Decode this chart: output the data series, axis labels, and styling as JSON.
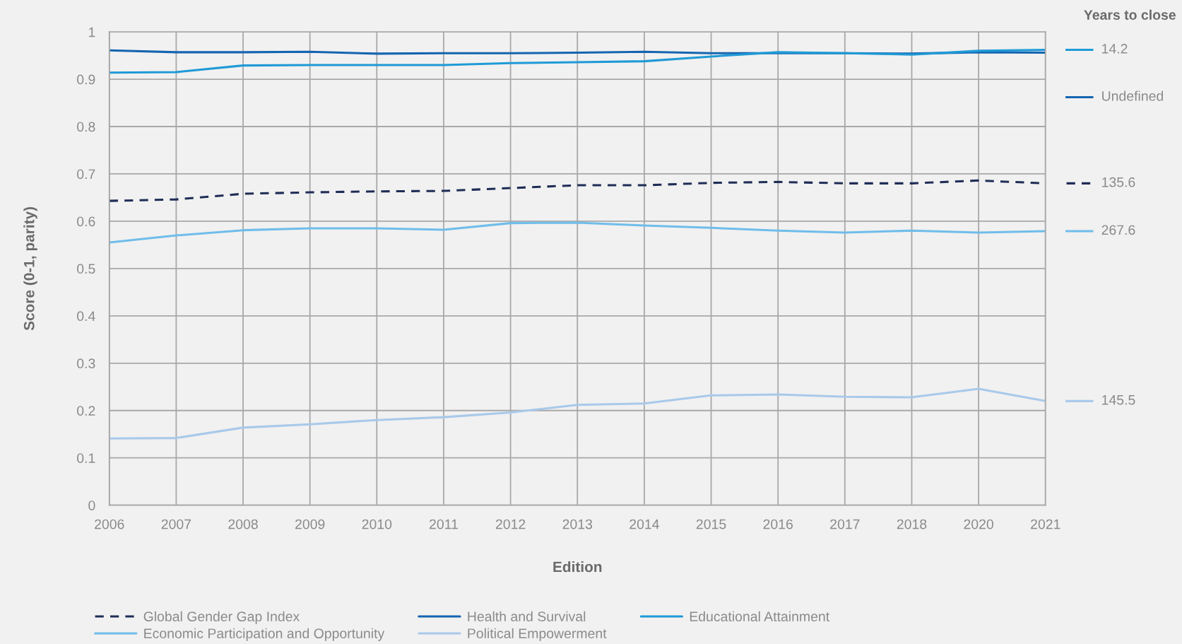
{
  "chart_data": {
    "type": "line",
    "xlabel": "Edition",
    "ylabel": "Score (0-1, parity)",
    "categories": [
      "2006",
      "2007",
      "2008",
      "2009",
      "2010",
      "2011",
      "2012",
      "2013",
      "2014",
      "2015",
      "2016",
      "2017",
      "2018",
      "2020",
      "2021"
    ],
    "series": [
      {
        "name": "Global Gender Gap Index",
        "color": "#1f2d56",
        "line_style": "dashed",
        "values": [
          0.643,
          0.646,
          0.658,
          0.661,
          0.663,
          0.664,
          0.67,
          0.676,
          0.676,
          0.681,
          0.683,
          0.68,
          0.68,
          0.686,
          0.68
        ]
      },
      {
        "name": "Health and Survival",
        "color": "#1565b0",
        "values": [
          0.961,
          0.957,
          0.957,
          0.958,
          0.954,
          0.955,
          0.955,
          0.956,
          0.958,
          0.955,
          0.955,
          0.955,
          0.954,
          0.957,
          0.956
        ]
      },
      {
        "name": "Educational Attainment",
        "color": "#1f9ad6",
        "values": [
          0.914,
          0.915,
          0.929,
          0.93,
          0.93,
          0.93,
          0.934,
          0.936,
          0.938,
          0.948,
          0.957,
          0.955,
          0.952,
          0.96,
          0.962
        ]
      },
      {
        "name": "Economic Participation and Opportunity",
        "color": "#6fbdea",
        "values": [
          0.555,
          0.57,
          0.581,
          0.585,
          0.585,
          0.582,
          0.596,
          0.597,
          0.591,
          0.586,
          0.58,
          0.576,
          0.58,
          0.576,
          0.579
        ]
      },
      {
        "name": "Political Empowerment",
        "color": "#a9c9ea",
        "values": [
          0.141,
          0.142,
          0.164,
          0.171,
          0.18,
          0.186,
          0.196,
          0.212,
          0.215,
          0.232,
          0.234,
          0.229,
          0.228,
          0.246,
          0.22
        ]
      }
    ],
    "ylim": [
      0,
      1
    ],
    "yticks": [
      0,
      0.1,
      0.2,
      0.3,
      0.4,
      0.5,
      0.6,
      0.7,
      0.8,
      0.9,
      1
    ],
    "grid": true,
    "legend": "bottom",
    "line_style": "solid",
    "marker": "none",
    "annotations": [
      "Years to close",
      "14.2",
      "Undefined",
      "135.6",
      "267.6",
      "145.5"
    ]
  }
}
